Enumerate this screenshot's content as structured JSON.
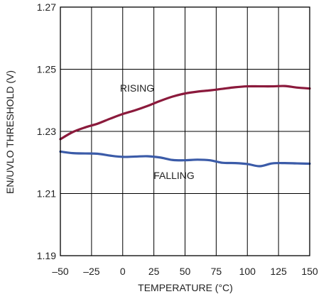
{
  "chart_data": {
    "type": "line",
    "title": "",
    "xlabel": "TEMPERATURE (°C)",
    "ylabel": "EN/UVLO THRESHOLD (V)",
    "xlim": [
      -50,
      150
    ],
    "ylim": [
      1.19,
      1.27
    ],
    "x_ticks": [
      -50,
      -25,
      0,
      25,
      50,
      75,
      100,
      125,
      150
    ],
    "x_tick_labels": [
      "–50",
      "–25",
      "0",
      "25",
      "50",
      "75",
      "100",
      "125",
      "150"
    ],
    "y_ticks": [
      1.19,
      1.21,
      1.23,
      1.25,
      1.27
    ],
    "y_tick_labels": [
      "1.19",
      "1.21",
      "1.23",
      "1.25",
      "1.27"
    ],
    "grid": true,
    "series": [
      {
        "name": "RISING",
        "color": "#8b1a3c",
        "x": [
          -50,
          -40,
          -30,
          -20,
          -10,
          0,
          10,
          20,
          30,
          40,
          50,
          60,
          70,
          80,
          90,
          100,
          110,
          120,
          130,
          140,
          150
        ],
        "y": [
          1.2275,
          1.2298,
          1.2313,
          1.2325,
          1.2341,
          1.2356,
          1.2368,
          1.2382,
          1.2398,
          1.2412,
          1.2422,
          1.2428,
          1.2432,
          1.2437,
          1.2442,
          1.2445,
          1.2445,
          1.2445,
          1.2446,
          1.2441,
          1.2438
        ]
      },
      {
        "name": "FALLING",
        "color": "#3b5ba8",
        "x": [
          -50,
          -40,
          -30,
          -20,
          -10,
          0,
          10,
          20,
          30,
          40,
          50,
          60,
          70,
          80,
          90,
          100,
          110,
          120,
          130,
          140,
          150
        ],
        "y": [
          1.2235,
          1.223,
          1.2229,
          1.2228,
          1.2222,
          1.2218,
          1.2219,
          1.222,
          1.2216,
          1.2208,
          1.2207,
          1.2209,
          1.2207,
          1.2199,
          1.2198,
          1.2195,
          1.2188,
          1.2197,
          1.2198,
          1.2197,
          1.2196
        ]
      }
    ]
  }
}
